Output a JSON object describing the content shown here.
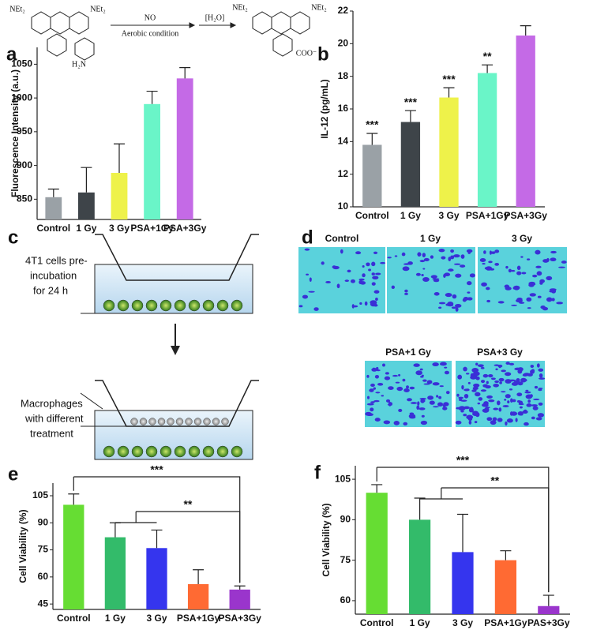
{
  "scheme": {
    "reagent": "NO",
    "condition": "Aerobic condition",
    "step2": "[H₂O]",
    "groups": [
      "NEt₂",
      "NEt₂",
      "NEt₂",
      "NEt₂"
    ],
    "amine": "H₂N",
    "carboxylate": "COO⁻"
  },
  "panel_labels": [
    "a",
    "b",
    "c",
    "d",
    "e",
    "f"
  ],
  "diagram": {
    "step1": [
      "4T1 cells pre-",
      "incubation",
      "for 24 h"
    ],
    "step2": [
      "Macrophages",
      "with different",
      "treatment"
    ]
  },
  "images": {
    "labels": [
      "Control",
      "1 Gy",
      "3 Gy",
      "PSA+1 Gy",
      "PSA+3 Gy"
    ]
  },
  "chart_data": [
    {
      "type": "bar",
      "y_label": "Fluorescence Intensity (a.u.)",
      "categories": [
        "Control",
        "1 Gy",
        "3 Gy",
        "PSA+1Gy",
        "PSA+3Gy"
      ],
      "values": [
        853,
        860,
        889,
        991,
        1029
      ],
      "errors": [
        12,
        37,
        43,
        19,
        16
      ],
      "colors": [
        "#9aa1a6",
        "#3e4449",
        "#eef24a",
        "#6af5c8",
        "#c46ae6"
      ],
      "ylim": [
        820,
        1075
      ],
      "yticks": [
        850,
        900,
        950,
        1000,
        1050
      ]
    },
    {
      "type": "bar",
      "y_label": "IL-12 (pg/mL)",
      "categories": [
        "Control",
        "1 Gy",
        "3 Gy",
        "PSA+1Gy",
        "PSA+3Gy"
      ],
      "values": [
        13.8,
        15.2,
        16.7,
        18.2,
        20.5
      ],
      "errors": [
        0.7,
        0.7,
        0.6,
        0.5,
        0.6
      ],
      "annotations": [
        "***",
        "***",
        "***",
        "**",
        null
      ],
      "colors": [
        "#9aa1a6",
        "#3e4449",
        "#eef24a",
        "#6af5c8",
        "#c46ae6"
      ],
      "ylim": [
        10,
        22
      ],
      "yticks": [
        10,
        12,
        14,
        16,
        18,
        20,
        22
      ]
    },
    {
      "type": "bar",
      "y_label": "Cell Viability (%)",
      "categories": [
        "Control",
        "1 Gy",
        "3 Gy",
        "PSA+1Gy",
        "PSA+3Gy"
      ],
      "values": [
        100,
        82,
        76,
        56,
        53
      ],
      "errors": [
        6,
        8,
        10,
        8,
        2
      ],
      "brackets": [
        {
          "text": "***"
        },
        {
          "text": "**"
        }
      ],
      "colors": [
        "#66dd33",
        "#33bb6a",
        "#3535ee",
        "#ff6a33",
        "#9a35cc"
      ],
      "ylim": [
        42,
        112
      ],
      "yticks": [
        45,
        60,
        75,
        90,
        105
      ]
    },
    {
      "type": "bar",
      "y_label": "Cell Viability (%)",
      "categories": [
        "Control",
        "1 Gy",
        "3 Gy",
        "PSA+1Gy",
        "PAS+3Gy"
      ],
      "values": [
        100,
        90,
        78,
        75,
        58
      ],
      "errors": [
        3,
        8,
        14,
        3.5,
        4
      ],
      "brackets": [
        {
          "text": "***"
        },
        {
          "text": "**"
        }
      ],
      "colors": [
        "#66dd33",
        "#33bb6a",
        "#3535ee",
        "#ff6a33",
        "#9a35cc"
      ],
      "ylim": [
        55,
        110
      ],
      "yticks": [
        60,
        75,
        90,
        105
      ]
    }
  ]
}
